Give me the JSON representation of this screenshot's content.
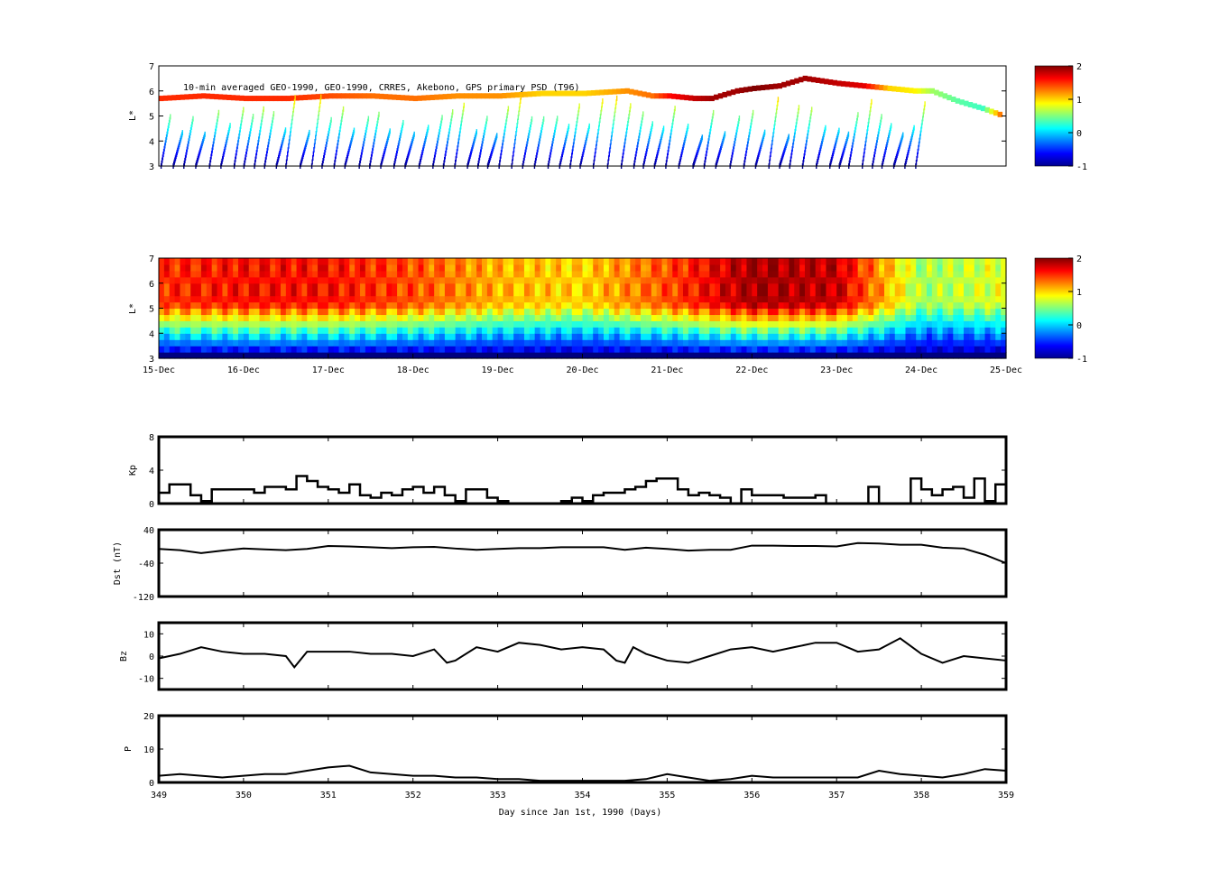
{
  "chart_data": [
    {
      "type": "heatmap",
      "panel": "psd-observed",
      "annotation": "10-min averaged GEO-1990, GEO-1990, CRRES, Akebono, GPS  primary PSD (T96)",
      "ylabel": "L*",
      "ylim": [
        3,
        7
      ],
      "yticks": [
        3,
        4,
        5,
        6,
        7
      ],
      "xlim": [
        349,
        359
      ],
      "colorbar": {
        "ticks": [
          -1,
          0,
          1,
          2
        ],
        "range": [
          -1,
          2
        ]
      },
      "description_series": {
        "name": "",
        "sampled_L": [
          5.7,
          5.8,
          5.7,
          5.7,
          5.8,
          5.8,
          5.7,
          5.8,
          5.8,
          5.9,
          5.9,
          6.0,
          5.8,
          5.8,
          5.7,
          5.7,
          6.0,
          6.1,
          6.2,
          6.5,
          6.3,
          6.2,
          6.1,
          6.0,
          6.0,
          5.6,
          5.3,
          5.0
        ],
        "sampled_x": [
          349.0,
          349.5,
          350.0,
          350.5,
          351.0,
          351.5,
          352.0,
          352.5,
          353.0,
          353.5,
          354.0,
          354.5,
          354.8,
          355.0,
          355.3,
          355.5,
          355.8,
          356.0,
          356.3,
          356.6,
          357.0,
          357.3,
          357.6,
          357.9,
          358.1,
          358.4,
          358.7,
          358.95
        ],
        "sampled_v": [
          1.5,
          1.5,
          1.5,
          1.5,
          1.4,
          1.3,
          1.3,
          1.2,
          1.2,
          1.0,
          1.0,
          1.2,
          1.3,
          1.6,
          1.8,
          1.9,
          1.9,
          2.0,
          1.9,
          1.9,
          1.8,
          1.7,
          1.0,
          0.9,
          0.6,
          0.4,
          0.3,
          1.5
        ]
      }
    },
    {
      "type": "heatmap",
      "panel": "psd-assimilated",
      "ylabel": "L*",
      "ylim": [
        3,
        7
      ],
      "yticks": [
        3,
        4,
        5,
        6,
        7
      ],
      "xticklabels": [
        "15-Dec",
        "16-Dec",
        "17-Dec",
        "18-Dec",
        "19-Dec",
        "20-Dec",
        "21-Dec",
        "22-Dec",
        "23-Dec",
        "24-Dec",
        "25-Dec"
      ],
      "colorbar": {
        "ticks": [
          -1,
          0,
          1,
          2
        ],
        "range": [
          -1,
          2
        ]
      },
      "profile_columns_x": [
        349,
        350,
        351,
        352,
        353,
        354,
        355,
        356,
        357,
        358,
        359
      ],
      "peak_value_by_day": [
        1.5,
        1.6,
        1.6,
        1.4,
        1.1,
        1.0,
        1.4,
        1.9,
        1.8,
        0.6,
        0.8
      ]
    },
    {
      "type": "line",
      "panel": "kp",
      "ylabel": "Kp",
      "ylim": [
        0,
        8
      ],
      "yticks": [
        0,
        4,
        8
      ],
      "xlim": [
        349,
        359
      ],
      "series": [
        {
          "name": "",
          "x": [
            349.0,
            349.125,
            349.25,
            349.375,
            349.5,
            349.625,
            349.75,
            349.875,
            350.0,
            350.125,
            350.25,
            350.375,
            350.5,
            350.625,
            350.75,
            350.875,
            351.0,
            351.125,
            351.25,
            351.375,
            351.5,
            351.625,
            351.75,
            351.875,
            352.0,
            352.125,
            352.25,
            352.375,
            352.5,
            352.625,
            352.75,
            352.875,
            353.0,
            353.125,
            353.25,
            353.375,
            353.5,
            353.625,
            353.75,
            353.875,
            354.0,
            354.125,
            354.25,
            354.375,
            354.5,
            354.625,
            354.75,
            354.875,
            355.0,
            355.125,
            355.25,
            355.375,
            355.5,
            355.625,
            355.75,
            355.875,
            356.0,
            356.125,
            356.25,
            356.375,
            356.5,
            356.625,
            356.75,
            356.875,
            357.0,
            357.125,
            357.25,
            357.375,
            357.5,
            357.625,
            357.75,
            357.875,
            358.0,
            358.125,
            358.25,
            358.375,
            358.5,
            358.625,
            358.75,
            358.875,
            359.0
          ],
          "y": [
            1.3,
            2.3,
            2.3,
            1.0,
            0.3,
            1.7,
            1.7,
            1.7,
            1.7,
            1.3,
            2.0,
            2.0,
            1.7,
            3.3,
            2.7,
            2.0,
            1.7,
            1.3,
            2.3,
            1.0,
            0.7,
            1.3,
            1.0,
            1.7,
            2.0,
            1.3,
            2.0,
            1.0,
            0.3,
            1.7,
            1.7,
            0.7,
            0.3,
            0.0,
            0.0,
            0.0,
            0.0,
            0.0,
            0.3,
            0.7,
            0.3,
            1.0,
            1.3,
            1.3,
            1.7,
            2.0,
            2.7,
            3.0,
            3.0,
            1.7,
            1.0,
            1.3,
            1.0,
            0.7,
            0.0,
            1.7,
            1.0,
            1.0,
            1.0,
            0.7,
            0.7,
            0.7,
            1.0,
            0.0,
            0.0,
            0.0,
            0.0,
            2.0,
            0.0,
            0.0,
            0.0,
            3.0,
            1.7,
            1.0,
            1.7,
            2.0,
            0.7,
            3.0,
            0.3,
            2.3,
            3.0
          ]
        }
      ]
    },
    {
      "type": "line",
      "panel": "dst",
      "ylabel": "Dst (nT)",
      "ylim": [
        -120,
        40
      ],
      "yticks": [
        -120,
        -40,
        40
      ],
      "xlim": [
        349,
        359
      ],
      "series": [
        {
          "name": "",
          "x": [
            349.0,
            349.25,
            349.5,
            349.75,
            350.0,
            350.25,
            350.5,
            350.75,
            351.0,
            351.25,
            351.5,
            351.75,
            352.0,
            352.25,
            352.5,
            352.75,
            353.0,
            353.25,
            353.5,
            353.75,
            354.0,
            354.25,
            354.5,
            354.75,
            355.0,
            355.25,
            355.5,
            355.75,
            356.0,
            356.25,
            356.5,
            356.75,
            357.0,
            357.25,
            357.5,
            357.75,
            358.0,
            358.25,
            358.5,
            358.75,
            359.0
          ],
          "y": [
            -6,
            -9,
            -16,
            -10,
            -5,
            -7,
            -9,
            -6,
            1,
            0,
            -2,
            -4,
            -2,
            -1,
            -5,
            -8,
            -6,
            -4,
            -4,
            -2,
            -2,
            -2,
            -8,
            -3,
            -6,
            -10,
            -8,
            -8,
            2,
            2,
            1,
            1,
            0,
            8,
            7,
            4,
            4,
            -3,
            -5,
            -20,
            -40
          ]
        }
      ]
    },
    {
      "type": "line",
      "panel": "bz",
      "ylabel": "Bz",
      "ylim": [
        -15,
        15
      ],
      "yticks": [
        -10,
        0,
        10
      ],
      "xlim": [
        349,
        359
      ],
      "series": [
        {
          "name": "",
          "x": [
            349.0,
            349.25,
            349.5,
            349.75,
            350.0,
            350.25,
            350.5,
            350.6,
            350.75,
            351.0,
            351.25,
            351.5,
            351.75,
            352.0,
            352.25,
            352.4,
            352.5,
            352.75,
            353.0,
            353.25,
            353.5,
            353.75,
            354.0,
            354.25,
            354.4,
            354.5,
            354.6,
            354.75,
            355.0,
            355.25,
            355.5,
            355.75,
            356.0,
            356.25,
            356.5,
            356.75,
            357.0,
            357.25,
            357.5,
            357.75,
            358.0,
            358.25,
            358.5,
            358.75,
            359.0
          ],
          "y": [
            -1,
            1,
            4,
            2,
            1,
            1,
            0,
            -5,
            2,
            2,
            2,
            1,
            1,
            0,
            3,
            -3,
            -2,
            4,
            2,
            6,
            5,
            3,
            4,
            3,
            -2,
            -3,
            4,
            1,
            -2,
            -3,
            0,
            3,
            4,
            2,
            4,
            6,
            6,
            2,
            3,
            8,
            1,
            -3,
            0,
            -1,
            -2
          ]
        }
      ]
    },
    {
      "type": "line",
      "panel": "pressure",
      "ylabel": "P",
      "xlabel": "Day since Jan 1st, 1990 (Days)",
      "ylim": [
        0,
        20
      ],
      "yticks": [
        0,
        10,
        20
      ],
      "xlim": [
        349,
        359
      ],
      "xticks": [
        349,
        350,
        351,
        352,
        353,
        354,
        355,
        356,
        357,
        358,
        359
      ],
      "series": [
        {
          "name": "",
          "x": [
            349.0,
            349.25,
            349.5,
            349.75,
            350.0,
            350.25,
            350.5,
            350.75,
            351.0,
            351.25,
            351.5,
            351.75,
            352.0,
            352.25,
            352.5,
            352.75,
            353.0,
            353.25,
            353.5,
            353.75,
            354.0,
            354.25,
            354.5,
            354.75,
            355.0,
            355.25,
            355.5,
            355.75,
            356.0,
            356.25,
            356.5,
            356.75,
            357.0,
            357.25,
            357.5,
            357.75,
            358.0,
            358.25,
            358.5,
            358.75,
            359.0
          ],
          "y": [
            2,
            2.5,
            2,
            1.5,
            2,
            2.5,
            2.5,
            3.5,
            4.5,
            5,
            3,
            2.5,
            2,
            2,
            1.5,
            1.5,
            1,
            1,
            0.5,
            0.5,
            0.5,
            0.5,
            0.5,
            1,
            2.5,
            1.5,
            0.5,
            1,
            2,
            1.5,
            1.5,
            1.5,
            1.5,
            1.5,
            3.5,
            2.5,
            2,
            1.5,
            2.5,
            4,
            3.5
          ]
        }
      ]
    }
  ]
}
